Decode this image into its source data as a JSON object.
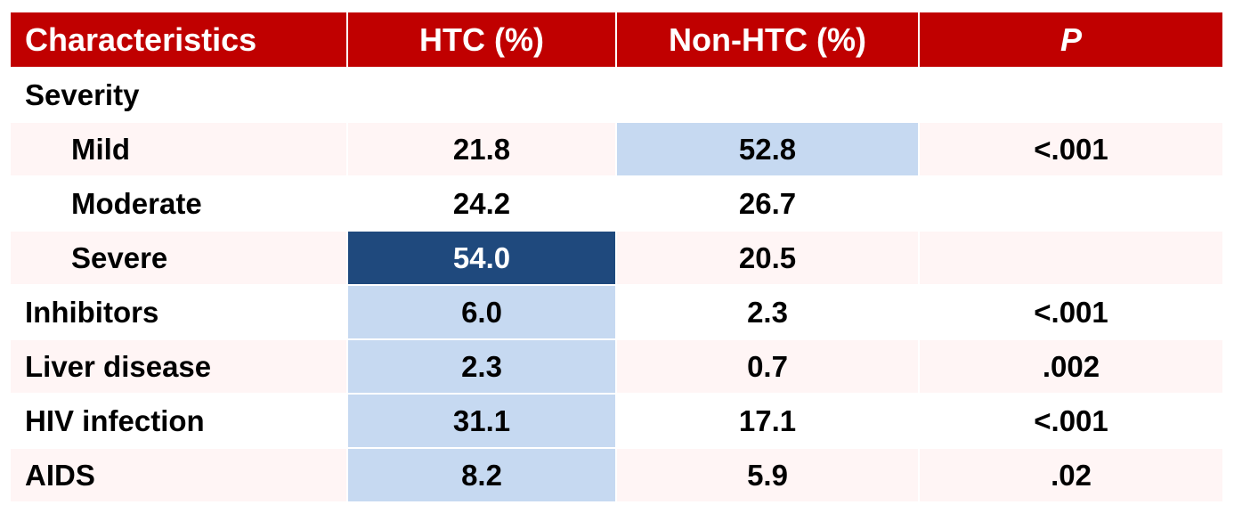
{
  "chart_data": {
    "type": "table",
    "columns": [
      "Characteristics",
      "HTC (%)",
      "Non-HTC (%)",
      "P"
    ],
    "rows": [
      {
        "label": "Severity",
        "indent": false,
        "cells": [
          "",
          "",
          ""
        ],
        "highlight": [
          "",
          "",
          ""
        ]
      },
      {
        "label": "Mild",
        "indent": true,
        "cells": [
          "21.8",
          "52.8",
          "<.001"
        ],
        "highlight": [
          "",
          "light",
          ""
        ]
      },
      {
        "label": "Moderate",
        "indent": true,
        "cells": [
          "24.2",
          "26.7",
          ""
        ],
        "highlight": [
          "",
          "",
          ""
        ]
      },
      {
        "label": "Severe",
        "indent": true,
        "cells": [
          "54.0",
          "20.5",
          ""
        ],
        "highlight": [
          "dark",
          "",
          ""
        ]
      },
      {
        "label": "Inhibitors",
        "indent": false,
        "cells": [
          "6.0",
          "2.3",
          "<.001"
        ],
        "highlight": [
          "light",
          "",
          ""
        ]
      },
      {
        "label": "Liver disease",
        "indent": false,
        "cells": [
          "2.3",
          "0.7",
          ".002"
        ],
        "highlight": [
          "light",
          "",
          ""
        ]
      },
      {
        "label": "HIV infection",
        "indent": false,
        "cells": [
          "31.1",
          "17.1",
          "<.001"
        ],
        "highlight": [
          "light",
          "",
          ""
        ]
      },
      {
        "label": "AIDS",
        "indent": false,
        "cells": [
          "8.2",
          "5.9",
          ".02"
        ],
        "highlight": [
          "light",
          "",
          ""
        ]
      }
    ]
  },
  "colors": {
    "header_bg": "#c00000",
    "header_text": "#ffffff",
    "row_tint": "#fff5f5",
    "highlight_light": "#c6d9f1",
    "highlight_dark": "#1f497d"
  }
}
